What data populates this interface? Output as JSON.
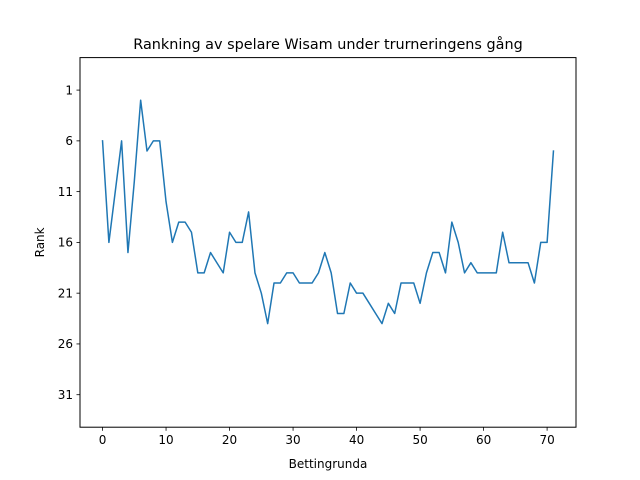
{
  "chart_data": {
    "type": "line",
    "title": "Rankning av spelare Wisam under trurneringens gång",
    "xlabel": "Bettingrunda",
    "ylabel": "Rank",
    "xlim": [
      -3.55,
      74.55
    ],
    "ylim": [
      34.2,
      -2.2
    ],
    "y_inverted": true,
    "xticks": [
      0,
      10,
      20,
      30,
      40,
      50,
      60,
      70
    ],
    "yticks": [
      1,
      6,
      11,
      16,
      21,
      26,
      31
    ],
    "grid": false,
    "series": [
      {
        "color": "#1f77b4",
        "x": [
          0,
          1,
          2,
          3,
          4,
          5,
          6,
          7,
          8,
          9,
          10,
          11,
          12,
          13,
          14,
          15,
          16,
          17,
          18,
          19,
          20,
          21,
          22,
          23,
          24,
          25,
          26,
          27,
          28,
          29,
          30,
          31,
          32,
          33,
          34,
          35,
          36,
          37,
          38,
          39,
          40,
          41,
          42,
          43,
          44,
          45,
          46,
          47,
          48,
          49,
          50,
          51,
          52,
          53,
          54,
          55,
          56,
          57,
          58,
          59,
          60,
          61,
          62,
          63,
          64,
          65,
          66,
          67,
          68,
          69,
          70,
          71
        ],
        "y": [
          6,
          16,
          11,
          6,
          17,
          10,
          2,
          7,
          6,
          6,
          12,
          16,
          14,
          14,
          15,
          19,
          19,
          17,
          18,
          19,
          15,
          16,
          16,
          13,
          19,
          21,
          24,
          20,
          20,
          19,
          19,
          20,
          20,
          20,
          19,
          17,
          19,
          23,
          23,
          20,
          21,
          21,
          22,
          23,
          24,
          22,
          23,
          20,
          20,
          20,
          22,
          19,
          17,
          17,
          19,
          14,
          16,
          19,
          18,
          19,
          19,
          19,
          19,
          15,
          18,
          18,
          18,
          18,
          20,
          16,
          16,
          7
        ]
      }
    ]
  }
}
